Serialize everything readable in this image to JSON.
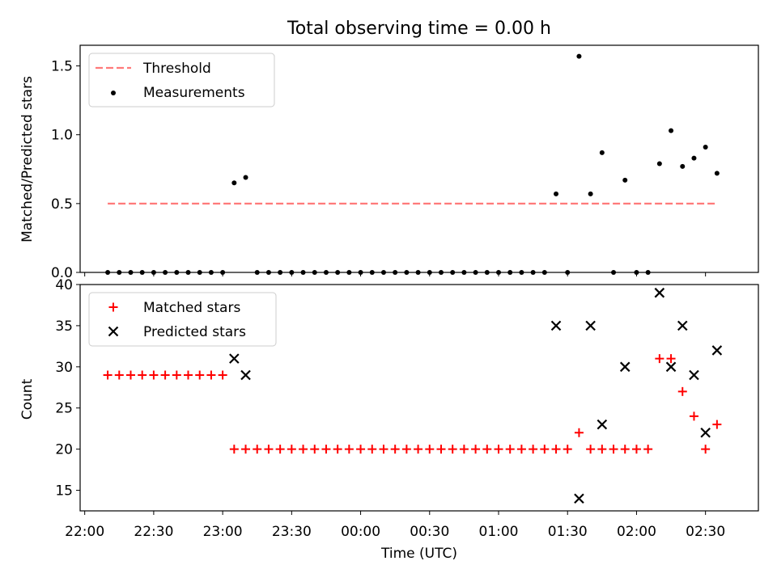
{
  "chart_data": [
    {
      "type": "scatter",
      "title": "Total observing time = 0.00 h",
      "xlabel": "",
      "ylabel": "Matched/Predicted stars",
      "ylim": [
        0,
        1.65
      ],
      "yticks": [
        0.0,
        0.5,
        1.0,
        1.5
      ],
      "ytick_labels": [
        "0.0",
        "0.5",
        "1.0",
        "1.5"
      ],
      "legend": {
        "position": "top-left",
        "entries": [
          "Threshold",
          "Measurements"
        ]
      },
      "threshold": {
        "name": "Threshold",
        "y": 0.5,
        "x_start": "22:10",
        "x_end": "02:35",
        "color": "#ff7a7a"
      },
      "series": [
        {
          "name": "Measurements",
          "color": "#000000",
          "points": [
            [
              "22:10",
              0
            ],
            [
              "22:15",
              0
            ],
            [
              "22:20",
              0
            ],
            [
              "22:25",
              0
            ],
            [
              "22:30",
              0
            ],
            [
              "22:35",
              0
            ],
            [
              "22:40",
              0
            ],
            [
              "22:45",
              0
            ],
            [
              "22:50",
              0
            ],
            [
              "22:55",
              0
            ],
            [
              "23:00",
              0
            ],
            [
              "23:05",
              0.65
            ],
            [
              "23:10",
              0.69
            ],
            [
              "23:15",
              0
            ],
            [
              "23:20",
              0
            ],
            [
              "23:25",
              0
            ],
            [
              "23:30",
              0
            ],
            [
              "23:35",
              0
            ],
            [
              "23:40",
              0
            ],
            [
              "23:45",
              0
            ],
            [
              "23:50",
              0
            ],
            [
              "23:55",
              0
            ],
            [
              "00:00",
              0
            ],
            [
              "00:05",
              0
            ],
            [
              "00:10",
              0
            ],
            [
              "00:15",
              0
            ],
            [
              "00:20",
              0
            ],
            [
              "00:25",
              0
            ],
            [
              "00:30",
              0
            ],
            [
              "00:35",
              0
            ],
            [
              "00:40",
              0
            ],
            [
              "00:45",
              0
            ],
            [
              "00:50",
              0
            ],
            [
              "00:55",
              0
            ],
            [
              "01:00",
              0
            ],
            [
              "01:05",
              0
            ],
            [
              "01:10",
              0
            ],
            [
              "01:15",
              0
            ],
            [
              "01:20",
              0
            ],
            [
              "01:25",
              0.57
            ],
            [
              "01:30",
              0
            ],
            [
              "01:35",
              1.57
            ],
            [
              "01:40",
              0.57
            ],
            [
              "01:45",
              0.87
            ],
            [
              "01:50",
              0
            ],
            [
              "01:55",
              0.67
            ],
            [
              "02:00",
              0
            ],
            [
              "02:05",
              0
            ],
            [
              "02:10",
              0.79
            ],
            [
              "02:15",
              1.03
            ],
            [
              "02:20",
              0.77
            ],
            [
              "02:25",
              0.83
            ],
            [
              "02:30",
              0.91
            ],
            [
              "02:35",
              0.72
            ]
          ]
        }
      ]
    },
    {
      "type": "scatter",
      "title": "",
      "xlabel": "Time (UTC)",
      "ylabel": "Count",
      "ylim": [
        12.5,
        40
      ],
      "yticks": [
        15,
        20,
        25,
        30,
        35,
        40
      ],
      "ytick_labels": [
        "15",
        "20",
        "25",
        "30",
        "35",
        "40"
      ],
      "xticks": [
        "22:00",
        "22:30",
        "23:00",
        "23:30",
        "00:00",
        "00:30",
        "01:00",
        "01:30",
        "02:00",
        "02:30"
      ],
      "xlim": [
        "21:58",
        "02:53"
      ],
      "legend": {
        "position": "top-left",
        "entries": [
          "Matched stars",
          "Predicted stars"
        ]
      },
      "series": [
        {
          "name": "Matched stars",
          "marker": "plus",
          "color": "#ff0000",
          "points": [
            [
              "22:10",
              29
            ],
            [
              "22:15",
              29
            ],
            [
              "22:20",
              29
            ],
            [
              "22:25",
              29
            ],
            [
              "22:30",
              29
            ],
            [
              "22:35",
              29
            ],
            [
              "22:40",
              29
            ],
            [
              "22:45",
              29
            ],
            [
              "22:50",
              29
            ],
            [
              "22:55",
              29
            ],
            [
              "23:00",
              29
            ],
            [
              "23:05",
              20
            ],
            [
              "23:10",
              20
            ],
            [
              "23:15",
              20
            ],
            [
              "23:20",
              20
            ],
            [
              "23:25",
              20
            ],
            [
              "23:30",
              20
            ],
            [
              "23:35",
              20
            ],
            [
              "23:40",
              20
            ],
            [
              "23:45",
              20
            ],
            [
              "23:50",
              20
            ],
            [
              "23:55",
              20
            ],
            [
              "00:00",
              20
            ],
            [
              "00:05",
              20
            ],
            [
              "00:10",
              20
            ],
            [
              "00:15",
              20
            ],
            [
              "00:20",
              20
            ],
            [
              "00:25",
              20
            ],
            [
              "00:30",
              20
            ],
            [
              "00:35",
              20
            ],
            [
              "00:40",
              20
            ],
            [
              "00:45",
              20
            ],
            [
              "00:50",
              20
            ],
            [
              "00:55",
              20
            ],
            [
              "01:00",
              20
            ],
            [
              "01:05",
              20
            ],
            [
              "01:10",
              20
            ],
            [
              "01:15",
              20
            ],
            [
              "01:20",
              20
            ],
            [
              "01:25",
              20
            ],
            [
              "01:30",
              20
            ],
            [
              "01:35",
              22
            ],
            [
              "01:40",
              20
            ],
            [
              "01:45",
              20
            ],
            [
              "01:50",
              20
            ],
            [
              "01:55",
              20
            ],
            [
              "02:00",
              20
            ],
            [
              "02:05",
              20
            ],
            [
              "02:10",
              31
            ],
            [
              "02:15",
              31
            ],
            [
              "02:20",
              27
            ],
            [
              "02:25",
              24
            ],
            [
              "02:30",
              20
            ],
            [
              "02:35",
              23
            ]
          ]
        },
        {
          "name": "Predicted stars",
          "marker": "x",
          "color": "#000000",
          "points": [
            [
              "23:05",
              31
            ],
            [
              "23:10",
              29
            ],
            [
              "01:25",
              35
            ],
            [
              "01:35",
              14
            ],
            [
              "01:40",
              35
            ],
            [
              "01:45",
              23
            ],
            [
              "01:55",
              30
            ],
            [
              "02:10",
              39
            ],
            [
              "02:15",
              30
            ],
            [
              "02:20",
              35
            ],
            [
              "02:25",
              29
            ],
            [
              "02:30",
              22
            ],
            [
              "02:35",
              32
            ]
          ]
        }
      ]
    }
  ]
}
